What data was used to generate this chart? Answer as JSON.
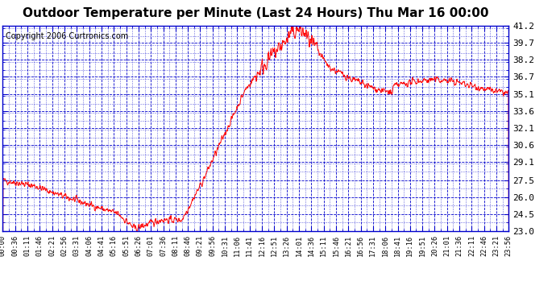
{
  "title": "Outdoor Temperature per Minute (Last 24 Hours) Thu Mar 16 00:00",
  "copyright": "Copyright 2006 Curtronics.com",
  "ylabel_right": [
    "41.2",
    "39.7",
    "38.2",
    "36.7",
    "35.1",
    "33.6",
    "32.1",
    "30.6",
    "29.1",
    "27.5",
    "26.0",
    "24.5",
    "23.0"
  ],
  "yticks": [
    41.2,
    39.7,
    38.2,
    36.7,
    35.1,
    33.6,
    32.1,
    30.6,
    29.1,
    27.5,
    26.0,
    24.5,
    23.0
  ],
  "ylim": [
    23.0,
    41.2
  ],
  "xtick_labels": [
    "00:00",
    "00:36",
    "01:11",
    "01:46",
    "02:21",
    "02:56",
    "03:31",
    "04:06",
    "04:41",
    "05:16",
    "05:51",
    "06:26",
    "07:01",
    "07:36",
    "08:11",
    "08:46",
    "09:21",
    "09:56",
    "10:31",
    "11:06",
    "11:41",
    "12:16",
    "12:51",
    "13:26",
    "14:01",
    "14:36",
    "15:11",
    "15:46",
    "16:21",
    "16:56",
    "17:31",
    "18:06",
    "18:41",
    "19:16",
    "19:51",
    "20:26",
    "21:01",
    "21:36",
    "22:11",
    "22:46",
    "23:21",
    "23:56"
  ],
  "background_color": "#ffffff",
  "plot_bg_color": "#ffffff",
  "grid_color": "#0000cc",
  "line_color": "#ff0000",
  "title_fontsize": 11,
  "copyright_fontsize": 7,
  "tick_label_color": "#000000",
  "ytick_label_color": "#000000"
}
